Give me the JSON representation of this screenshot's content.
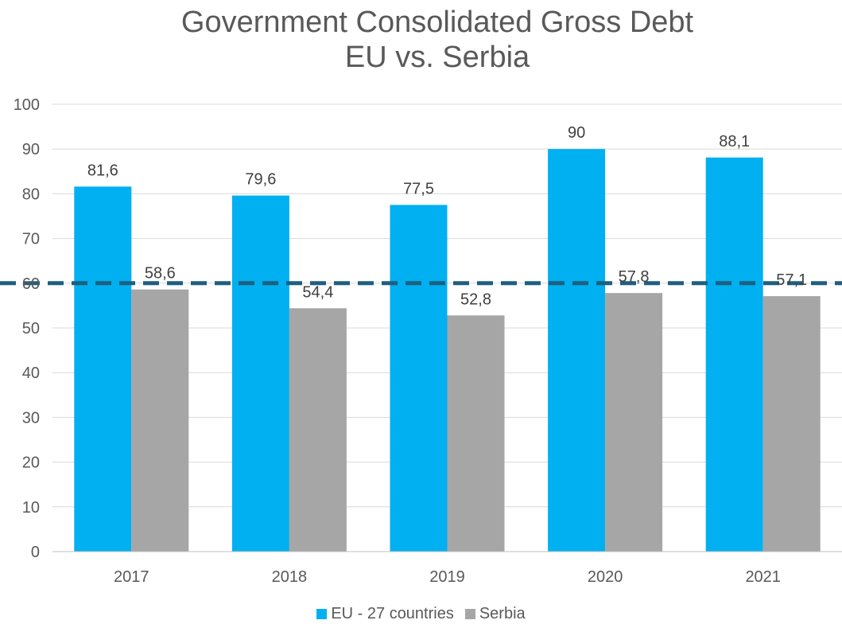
{
  "chart_data": {
    "type": "bar",
    "title": [
      "Government Consolidated Gross Debt",
      "EU vs. Serbia"
    ],
    "categories": [
      "2017",
      "2018",
      "2019",
      "2020",
      "2021"
    ],
    "series": [
      {
        "name": "EU - 27 countries",
        "values": [
          81.6,
          79.6,
          77.5,
          90,
          88.1
        ],
        "labels": [
          "81,6",
          "79,6",
          "77,5",
          "90",
          "88,1"
        ],
        "color": "#00B0F0"
      },
      {
        "name": "Serbia",
        "values": [
          58.6,
          54.4,
          52.8,
          57.8,
          57.1
        ],
        "labels": [
          "58,6",
          "54,4",
          "52,8",
          "57,8",
          "57,1"
        ],
        "color": "#A6A6A6"
      }
    ],
    "ylim": [
      0,
      100
    ],
    "yticks": [
      0,
      10,
      20,
      30,
      40,
      50,
      60,
      70,
      80,
      90,
      100
    ],
    "grid": true,
    "reference_line": {
      "value": 60,
      "style": "dashed",
      "color": "#1F5F7F"
    },
    "legend_position": "bottom",
    "xlabel": "",
    "ylabel": ""
  }
}
